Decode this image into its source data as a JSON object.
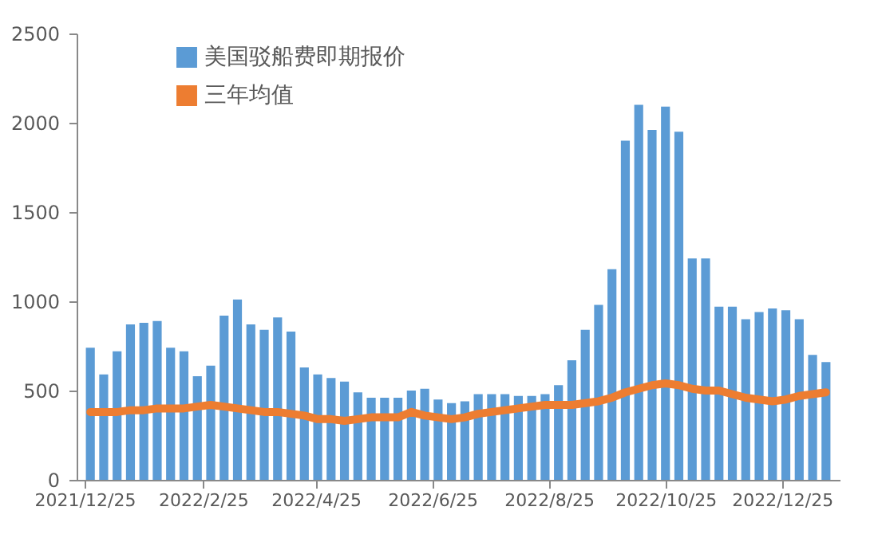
{
  "chart_data": {
    "type": "bar",
    "x": [
      "2021-12-28",
      "2022-01-04",
      "2022-01-11",
      "2022-01-18",
      "2022-01-25",
      "2022-02-01",
      "2022-02-08",
      "2022-02-15",
      "2022-02-22",
      "2022-03-01",
      "2022-03-08",
      "2022-03-15",
      "2022-03-22",
      "2022-03-29",
      "2022-04-05",
      "2022-04-12",
      "2022-04-19",
      "2022-04-26",
      "2022-05-03",
      "2022-05-10",
      "2022-05-17",
      "2022-05-24",
      "2022-05-31",
      "2022-06-07",
      "2022-06-14",
      "2022-06-21",
      "2022-06-28",
      "2022-07-05",
      "2022-07-12",
      "2022-07-19",
      "2022-07-26",
      "2022-08-02",
      "2022-08-09",
      "2022-08-16",
      "2022-08-23",
      "2022-08-30",
      "2022-09-06",
      "2022-09-13",
      "2022-09-20",
      "2022-09-27",
      "2022-10-04",
      "2022-10-11",
      "2022-10-18",
      "2022-10-25",
      "2022-11-01",
      "2022-11-08",
      "2022-11-15",
      "2022-11-22",
      "2022-11-29",
      "2022-12-06",
      "2022-12-13",
      "2022-12-20",
      "2022-12-27",
      "2023-01-03",
      "2023-01-10",
      "2023-01-17"
    ],
    "series": [
      {
        "name": "美国驳船费即期报价",
        "color": "#5b9bd5",
        "values": [
          740,
          590,
          720,
          870,
          880,
          890,
          740,
          720,
          580,
          640,
          920,
          1010,
          870,
          840,
          910,
          830,
          630,
          590,
          570,
          550,
          490,
          460,
          460,
          460,
          500,
          510,
          450,
          430,
          440,
          480,
          480,
          480,
          470,
          470,
          480,
          530,
          670,
          840,
          980,
          1180,
          1900,
          2100,
          1960,
          2090,
          1950,
          1240,
          1240,
          970,
          970,
          900,
          940,
          960,
          950,
          900,
          700,
          660
        ]
      },
      {
        "name": "三年均值",
        "type": "line",
        "color": "#ed7d31",
        "values": [
          380,
          380,
          380,
          390,
          390,
          400,
          400,
          400,
          410,
          420,
          410,
          400,
          390,
          380,
          380,
          370,
          360,
          340,
          340,
          330,
          340,
          350,
          350,
          350,
          380,
          360,
          350,
          340,
          350,
          370,
          380,
          390,
          400,
          410,
          420,
          420,
          420,
          430,
          440,
          460,
          490,
          510,
          530,
          540,
          530,
          510,
          500,
          500,
          480,
          460,
          450,
          440,
          450,
          470,
          480,
          490
        ]
      }
    ],
    "xlim": [
      "2021-12-25",
      "2023-01-20"
    ],
    "xticks": [
      {
        "value": "2021-12-25",
        "label": "2021/12/25"
      },
      {
        "value": "2022-02-25",
        "label": "2022/2/25"
      },
      {
        "value": "2022-04-25",
        "label": "2022/4/25"
      },
      {
        "value": "2022-06-25",
        "label": "2022/6/25"
      },
      {
        "value": "2022-08-25",
        "label": "2022/8/25"
      },
      {
        "value": "2022-10-25",
        "label": "2022/10/25"
      },
      {
        "value": "2022-12-25",
        "label": "2022/12/25"
      }
    ],
    "ylim": [
      0,
      2500
    ],
    "yticks": [
      0,
      500,
      1000,
      1500,
      2000,
      2500
    ],
    "legend": "top left",
    "grid": false,
    "line_style": "solid"
  }
}
